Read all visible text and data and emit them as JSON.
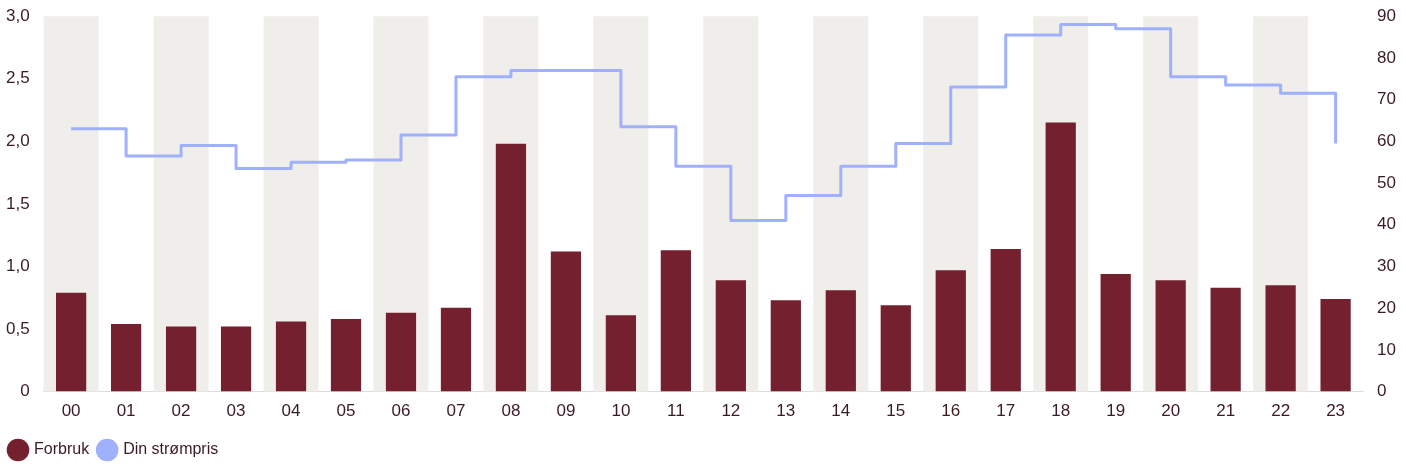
{
  "chart_data": {
    "type": "bar",
    "categories": [
      "00",
      "01",
      "02",
      "03",
      "04",
      "05",
      "06",
      "07",
      "08",
      "09",
      "10",
      "11",
      "12",
      "13",
      "14",
      "15",
      "16",
      "17",
      "18",
      "19",
      "20",
      "21",
      "22",
      "23"
    ],
    "series": [
      {
        "name": "Forbruk",
        "color": "#74202f",
        "values": [
          0.79,
          0.54,
          0.52,
          0.52,
          0.56,
          0.58,
          0.63,
          0.67,
          1.98,
          1.12,
          0.61,
          1.13,
          0.89,
          0.73,
          0.81,
          0.69,
          0.97,
          1.14,
          2.15,
          0.94,
          0.89,
          0.83,
          0.85,
          0.74
        ]
      },
      {
        "name": "Din strømpris",
        "type": "step",
        "axis": "y2",
        "color": "#9fb0fc",
        "values": [
          63,
          56.5,
          59,
          53.5,
          55,
          55.5,
          61.5,
          75.5,
          77,
          77,
          63.5,
          54,
          41,
          47,
          54,
          59.5,
          73,
          85.5,
          88,
          87,
          75.5,
          73.5,
          71.5,
          59.5
        ]
      }
    ],
    "ylim": [
      0,
      3
    ],
    "yticks": [
      0,
      {
        "value": 0.5,
        "label": "0,5"
      },
      {
        "value": 1,
        "label": "1,0"
      },
      {
        "value": 1.5,
        "label": "1,5"
      },
      {
        "value": 2,
        "label": "2,0"
      },
      {
        "value": 2.5,
        "label": "2,5"
      },
      {
        "value": 3,
        "label": "3,0"
      }
    ],
    "y2lim": [
      0,
      90
    ],
    "y2ticks": [
      0,
      10,
      20,
      30,
      40,
      50,
      60,
      70,
      80,
      90
    ],
    "bands": [
      {
        "axis": "x",
        "from": "00",
        "to": "00",
        "color": "#f0eeea"
      },
      {
        "axis": "x",
        "from": "02",
        "to": "02",
        "color": "#f0eeea"
      },
      {
        "axis": "x",
        "from": "04",
        "to": "04",
        "color": "#f0eeea"
      },
      {
        "axis": "x",
        "from": "06",
        "to": "06",
        "color": "#f0eeea"
      },
      {
        "axis": "x",
        "from": "08",
        "to": "08",
        "color": "#f0eeea"
      },
      {
        "axis": "x",
        "from": "10",
        "to": "10",
        "color": "#f0eeea"
      },
      {
        "axis": "x",
        "from": "12",
        "to": "12",
        "color": "#f0eeea"
      },
      {
        "axis": "x",
        "from": "14",
        "to": "14",
        "color": "#f0eeea"
      },
      {
        "axis": "x",
        "from": "16",
        "to": "16",
        "color": "#f0eeea"
      },
      {
        "axis": "x",
        "from": "18",
        "to": "18",
        "color": "#f0eeea"
      },
      {
        "axis": "x",
        "from": "20",
        "to": "20",
        "color": "#f0eeea"
      },
      {
        "axis": "x",
        "from": "22",
        "to": "22",
        "color": "#f0eeea"
      }
    ],
    "grid": false,
    "legend": "bottom left",
    "marker": "none"
  }
}
